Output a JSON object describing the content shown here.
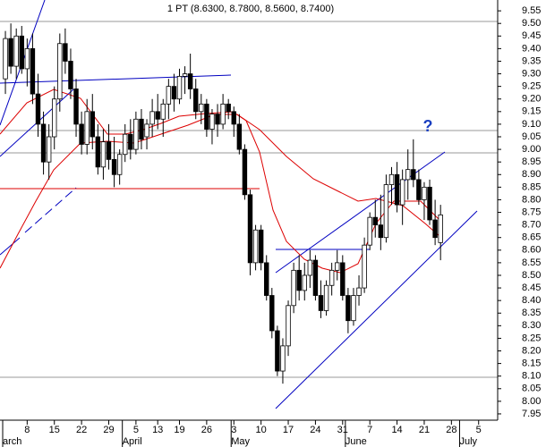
{
  "chart_data": {
    "type": "candlestick",
    "title": "1 PT (8.6300, 8.7800, 8.5600, 8.7400)",
    "annotation": "?",
    "categories": [
      null,
      null,
      null,
      null,
      "8",
      null,
      null,
      null,
      null,
      "15",
      null,
      null,
      null,
      null,
      "22",
      null,
      null,
      null,
      null,
      "29",
      null,
      null,
      null,
      null,
      "5",
      null,
      null,
      null,
      "13",
      null,
      null,
      null,
      "19",
      null,
      null,
      null,
      null,
      "26",
      null,
      null,
      null,
      null,
      "3",
      null,
      null,
      null,
      null,
      "10",
      null,
      null,
      null,
      null,
      "17",
      null,
      null,
      null,
      null,
      "24",
      null,
      null,
      null,
      null,
      "31",
      null,
      null,
      null,
      null,
      "7",
      null,
      null,
      null,
      null,
      "14",
      null,
      null,
      null,
      null,
      "21",
      null,
      null,
      null,
      null,
      "28",
      null,
      null,
      null,
      null,
      "5",
      null,
      null,
      null
    ],
    "months": [
      "arch",
      null,
      null,
      null,
      null,
      null,
      null,
      null,
      null,
      null,
      null,
      null,
      null,
      null,
      null,
      null,
      null,
      null,
      null,
      null,
      null,
      null,
      "April",
      null,
      null,
      null,
      null,
      null,
      null,
      null,
      null,
      null,
      null,
      null,
      null,
      null,
      null,
      null,
      null,
      null,
      null,
      null,
      "May",
      null,
      null,
      null,
      null,
      null,
      null,
      null,
      null,
      null,
      null,
      null,
      null,
      null,
      null,
      null,
      null,
      null,
      null,
      null,
      null,
      "June",
      null,
      null,
      null,
      null,
      null,
      null,
      null,
      null,
      null,
      null,
      null,
      null,
      null,
      null,
      null,
      null,
      null,
      null,
      null,
      null,
      "July",
      null,
      null,
      null,
      null,
      null
    ],
    "open": [
      9.28,
      9.44,
      9.33,
      9.45,
      9.32,
      9.4,
      9.22,
      9.1,
      8.95,
      9.05,
      9.2,
      9.42,
      9.35,
      9.24,
      9.1,
      9.02,
      9.15,
      9.05,
      8.93,
      9.03,
      8.96,
      8.9,
      8.98,
      9.06,
      9.0,
      9.12,
      9.05,
      9.1,
      9.15,
      9.12,
      9.18,
      9.25,
      9.2,
      9.29,
      9.3,
      9.24,
      9.15,
      9.18,
      9.08,
      9.14,
      9.1,
      9.18,
      9.15,
      9.1,
      9.0,
      8.82,
      8.55,
      8.68,
      8.55,
      8.42,
      8.28,
      8.12,
      8.22,
      8.38,
      8.52,
      8.44,
      8.5,
      8.56,
      8.42,
      8.36,
      8.46,
      8.52,
      8.55,
      8.42,
      8.32,
      8.42,
      8.45,
      8.62,
      8.73,
      8.7,
      8.65,
      8.86,
      8.9,
      8.78,
      8.88,
      8.92,
      8.88,
      8.8,
      8.85,
      8.72,
      8.63,
      null,
      null,
      null,
      null,
      null,
      null,
      null,
      null,
      null,
      null
    ],
    "high": [
      9.47,
      9.5,
      9.48,
      9.49,
      9.44,
      9.46,
      9.3,
      9.15,
      9.1,
      9.25,
      9.46,
      9.48,
      9.4,
      9.28,
      9.15,
      9.2,
      9.22,
      9.1,
      9.08,
      9.1,
      9.05,
      9.0,
      9.1,
      9.12,
      9.15,
      9.16,
      9.12,
      9.2,
      9.22,
      9.2,
      9.28,
      9.3,
      9.32,
      9.33,
      9.38,
      9.28,
      9.22,
      9.2,
      9.16,
      9.18,
      9.22,
      9.2,
      9.17,
      9.14,
      9.02,
      8.84,
      8.7,
      8.7,
      8.58,
      8.45,
      8.3,
      8.25,
      8.4,
      8.55,
      8.58,
      8.55,
      8.6,
      8.58,
      8.48,
      8.48,
      8.55,
      8.6,
      8.58,
      8.45,
      8.45,
      8.5,
      8.65,
      8.75,
      8.8,
      8.82,
      8.9,
      8.93,
      8.95,
      8.92,
      9.0,
      9.04,
      8.92,
      8.87,
      8.88,
      8.8,
      8.78,
      null,
      null,
      null,
      null,
      null,
      null,
      null,
      null,
      null,
      null
    ],
    "low": [
      9.22,
      9.3,
      9.28,
      9.3,
      9.25,
      9.18,
      9.05,
      8.9,
      8.88,
      9.0,
      9.15,
      9.3,
      9.2,
      9.05,
      8.98,
      8.98,
      9.0,
      8.9,
      8.88,
      8.92,
      8.85,
      8.86,
      8.95,
      8.96,
      8.98,
      9.0,
      9.0,
      9.05,
      9.08,
      9.05,
      9.12,
      9.15,
      9.18,
      9.22,
      9.2,
      9.12,
      9.1,
      9.05,
      9.02,
      9.05,
      9.08,
      9.12,
      9.05,
      8.98,
      8.8,
      8.5,
      8.52,
      8.52,
      8.4,
      8.25,
      8.1,
      8.07,
      8.18,
      8.35,
      8.4,
      8.4,
      8.45,
      8.4,
      8.33,
      8.34,
      8.42,
      8.48,
      8.4,
      8.27,
      8.3,
      8.38,
      8.43,
      8.6,
      8.65,
      8.6,
      8.63,
      8.78,
      8.75,
      8.7,
      8.8,
      8.85,
      8.78,
      8.72,
      8.7,
      8.62,
      8.56,
      null,
      null,
      null,
      null,
      null,
      null,
      null,
      null,
      null,
      null
    ],
    "close": [
      9.44,
      9.33,
      9.45,
      9.32,
      9.4,
      9.22,
      9.1,
      8.95,
      9.05,
      9.2,
      9.42,
      9.35,
      9.24,
      9.1,
      9.02,
      9.15,
      9.05,
      8.93,
      9.03,
      8.96,
      8.9,
      8.98,
      9.06,
      9.0,
      9.12,
      9.04,
      9.1,
      9.15,
      9.12,
      9.18,
      9.25,
      9.2,
      9.29,
      9.3,
      9.24,
      9.15,
      9.18,
      9.08,
      9.14,
      9.1,
      9.18,
      9.15,
      9.1,
      9.0,
      8.82,
      8.55,
      8.68,
      8.55,
      8.42,
      8.28,
      8.12,
      8.22,
      8.38,
      8.52,
      8.44,
      8.5,
      8.56,
      8.42,
      8.36,
      8.46,
      8.52,
      8.55,
      8.42,
      8.32,
      8.42,
      8.45,
      8.62,
      8.73,
      8.7,
      8.65,
      8.86,
      8.9,
      8.78,
      8.88,
      8.92,
      8.88,
      8.8,
      8.85,
      8.72,
      8.65,
      8.74,
      null,
      null,
      null,
      null,
      null,
      null,
      null,
      null,
      null,
      null
    ],
    "up_color": "#ffffff",
    "down_color": "#000000",
    "ylim": [
      7.925,
      9.593
    ],
    "yticks": [
      7.95,
      {
        "value": 8.0,
        "label": "8.00"
      },
      8.05,
      {
        "value": 8.1,
        "label": "8.10"
      },
      8.15,
      {
        "value": 8.2,
        "label": "8.20"
      },
      8.25,
      {
        "value": 8.3,
        "label": "8.30"
      },
      8.35,
      {
        "value": 8.4,
        "label": "8.40"
      },
      8.45,
      {
        "value": 8.5,
        "label": "8.50"
      },
      8.55,
      {
        "value": 8.6,
        "label": "8.60"
      },
      8.65,
      {
        "value": 8.7,
        "label": "8.70"
      },
      8.75,
      {
        "value": 8.8,
        "label": "8.80"
      },
      8.85,
      {
        "value": 8.9,
        "label": "8.90"
      },
      8.95,
      {
        "value": 9.0,
        "label": "9.00"
      },
      9.05,
      {
        "value": 9.1,
        "label": "9.10"
      },
      9.15,
      {
        "value": 9.2,
        "label": "9.20"
      },
      9.25,
      {
        "value": 9.3,
        "label": "9.30"
      },
      9.35,
      {
        "value": 9.4,
        "label": "9.40"
      },
      9.45,
      {
        "value": 9.5,
        "label": "9.50"
      },
      9.55
    ]
  }
}
